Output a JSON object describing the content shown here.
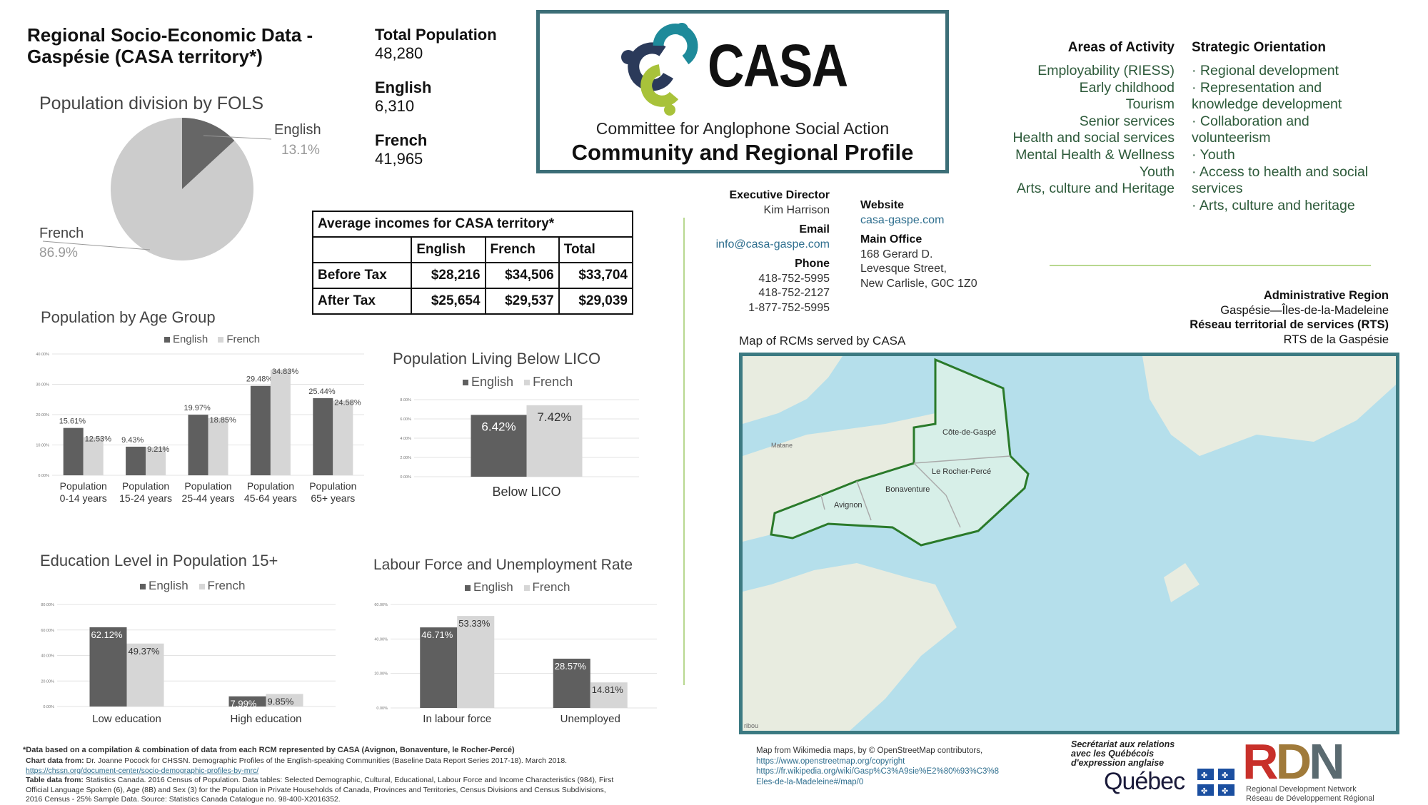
{
  "header": {
    "title_line1": "Regional Socio-Economic Data -",
    "title_line2": "Gaspésie (CASA territory*)"
  },
  "stats": {
    "total_label": "Total Population",
    "total_value": "48,280",
    "english_label": "English",
    "english_value": "6,310",
    "french_label": "French",
    "french_value": "41,965"
  },
  "casa": {
    "logo_text": "CASA",
    "subtitle": "Committee for Anglophone Social Action",
    "profile_title": "Community and Regional Profile",
    "logo_colors": {
      "blue": "#2b3a5a",
      "teal": "#1e8a9a",
      "green": "#a8c23a"
    }
  },
  "contacts": {
    "director_label": "Executive Director",
    "director_value": "Kim Harrison",
    "email_label": "Email",
    "email_value": "info@casa-gaspe.com",
    "phone_label": "Phone",
    "phone1": "418-752-5995",
    "phone2": "418-752-2127",
    "phone3": "1-877-752-5995",
    "website_label": "Website",
    "website_value": "casa-gaspe.com",
    "office_label": "Main Office",
    "office_line1": "168 Gerard D.",
    "office_line2": "Levesque Street,",
    "office_line3": "New Carlisle, G0C 1Z0"
  },
  "areas": {
    "heading": "Areas of Activity",
    "items": [
      "Employability (RIESS)",
      "Early childhood",
      "Tourism",
      "Senior services",
      "Health and social services",
      "Mental Health & Wellness",
      "Youth",
      "Arts, culture and Heritage"
    ]
  },
  "strategic": {
    "heading": "Strategic Orientation",
    "lines": [
      "· Regional development",
      "· Representation and",
      "knowledge development",
      "· Collaboration and",
      "volunteerism",
      "· Youth",
      "· Access to health and social",
      "services",
      "· Arts, culture and heritage"
    ]
  },
  "admin": {
    "region_label": "Administrative Region",
    "region_value": "Gaspésie—Îles-de-la-Madeleine",
    "rts_label": "Réseau territorial de services (RTS)",
    "rts_value": "RTS de la Gaspésie"
  },
  "map": {
    "title": "Map of RCMs served by CASA",
    "labels": {
      "cote": "Côte-de-Gaspé",
      "rocher": "Le Rocher-Percé",
      "bonaventure": "Bonaventure",
      "avignon": "Avignon",
      "matane": "Matane",
      "edge": "ribou"
    },
    "colors": {
      "water": "#b5dfeb",
      "land": "#e8ece0",
      "region": "#d7efe8",
      "border": "#2a7a2a"
    }
  },
  "incomes": {
    "title": "Average incomes for CASA territory*",
    "headers": [
      "",
      "English",
      "French",
      "Total"
    ],
    "rows": [
      {
        "label": "Before Tax",
        "english": "$28,216",
        "french": "$34,506",
        "total": "$33,704"
      },
      {
        "label": "After Tax",
        "english": "$25,654",
        "french": "$29,537",
        "total": "$29,039"
      }
    ]
  },
  "chart_data": [
    {
      "type": "pie",
      "title": "Population division by FOLS",
      "categories": [
        "English",
        "French"
      ],
      "values": [
        13.1,
        86.9
      ],
      "value_labels": [
        "13.1%",
        "86.9%"
      ],
      "colors": [
        "#666666",
        "#cccccc"
      ]
    },
    {
      "type": "bar",
      "title": "Population by Age Group",
      "categories": [
        "Population 0-14 years",
        "Population 15-24 years",
        "Population 25-44 years",
        "Population 45-64 years",
        "Population 65+ years"
      ],
      "series": [
        {
          "name": "English",
          "values": [
            15.61,
            9.43,
            19.97,
            29.48,
            25.44
          ],
          "labels": [
            "15.61%",
            "9.43%",
            "19.97%",
            "29.48%",
            "25.44%"
          ],
          "color": "#5f5f5f"
        },
        {
          "name": "French",
          "values": [
            12.53,
            9.21,
            18.85,
            34.83,
            24.58
          ],
          "labels": [
            "12.53%",
            "9.21%",
            "18.85%",
            "34.83%",
            "24.58%"
          ],
          "color": "#d6d6d6"
        }
      ],
      "ylim": [
        0,
        40
      ],
      "yticks": [
        "0.00%",
        "10.00%",
        "20.00%",
        "30.00%",
        "40.00%"
      ]
    },
    {
      "type": "bar",
      "title": "Population Living Below LICO",
      "categories": [
        "Below LICO"
      ],
      "series": [
        {
          "name": "English",
          "values": [
            6.42
          ],
          "labels": [
            "6.42%"
          ],
          "color": "#5f5f5f"
        },
        {
          "name": "French",
          "values": [
            7.42
          ],
          "labels": [
            "7.42%"
          ],
          "color": "#d6d6d6"
        }
      ],
      "ylim": [
        0,
        8
      ],
      "yticks": [
        "0.00%",
        "2.00%",
        "4.00%",
        "6.00%",
        "8.00%"
      ]
    },
    {
      "type": "bar",
      "title": "Education Level in Population 15+",
      "categories": [
        "Low education",
        "High education"
      ],
      "series": [
        {
          "name": "English",
          "values": [
            62.12,
            7.99
          ],
          "labels": [
            "62.12%",
            "7.99%"
          ],
          "color": "#5f5f5f"
        },
        {
          "name": "French",
          "values": [
            49.37,
            9.85
          ],
          "labels": [
            "49.37%",
            "9.85%"
          ],
          "color": "#d6d6d6"
        }
      ],
      "ylim": [
        0,
        80
      ],
      "yticks": [
        "0.00%",
        "20.00%",
        "40.00%",
        "60.00%",
        "80.00%"
      ]
    },
    {
      "type": "bar",
      "title": "Labour Force and Unemployment Rate",
      "categories": [
        "In labour force",
        "Unemployed"
      ],
      "series": [
        {
          "name": "English",
          "values": [
            46.71,
            28.57
          ],
          "labels": [
            "46.71%",
            "28.57%"
          ],
          "color": "#5f5f5f"
        },
        {
          "name": "French",
          "values": [
            53.33,
            14.81
          ],
          "labels": [
            "53.33%",
            "14.81%"
          ],
          "color": "#d6d6d6"
        }
      ],
      "ylim": [
        0,
        60
      ],
      "yticks": [
        "0.00%",
        "20.00%",
        "40.00%",
        "60.00%"
      ]
    }
  ],
  "footer": {
    "note": "*Data based on a compilation & combination of data from each RCM represented by CASA (Avignon, Bonaventure, le Rocher-Percé)",
    "chart_source_label": "Chart data from:",
    "chart_source_text": "Dr. Joanne Pocock for CHSSN. Demographic Profiles of the English-speaking Communities (Baseline Data Report Series 2017-18). March 2018.",
    "chart_source_url": "https://chssn.org/document-center/socio-demographic-profiles-by-mrc/",
    "table_source_label": "Table data from:",
    "table_source_text1": "Statistics Canada. 2016 Census of Population. Data tables: Selected Demographic, Cultural, Educational, Labour Force and Income Characteristics (984), First",
    "table_source_text2": "Official Language Spoken (6), Age (8B) and Sex (3) for the Population in Private Households of Canada, Provinces and Territories, Census Divisions and Census Subdivisions,",
    "table_source_text3": "2016 Census - 25% Sample Data. Source: Statistics Canada Catalogue no. 98-400-X2016352.",
    "map_credit1": "Map from Wikimedia maps, by © OpenStreetMap contributors,",
    "map_credit2": "https://www.openstreetmap.org/copyright",
    "map_credit3": "https://fr.wikipedia.org/wiki/Gasp%C3%A9sie%E2%80%93%C3%8",
    "map_credit4": "Eles-de-la-Madeleine#/map/0"
  },
  "sponsors": {
    "sraq_line1": "Secrétariat aux relations",
    "sraq_line2": "avec les Québécois",
    "sraq_line3": "d'expression anglaise",
    "quebec": "Québec",
    "rdn_logo": "RDN",
    "rdn_en": "Regional Development Network",
    "rdn_fr": "Réseau de Développement Régional",
    "rdn_colors": [
      "#c8302a",
      "#a07a3a",
      "#5a6a70"
    ]
  }
}
